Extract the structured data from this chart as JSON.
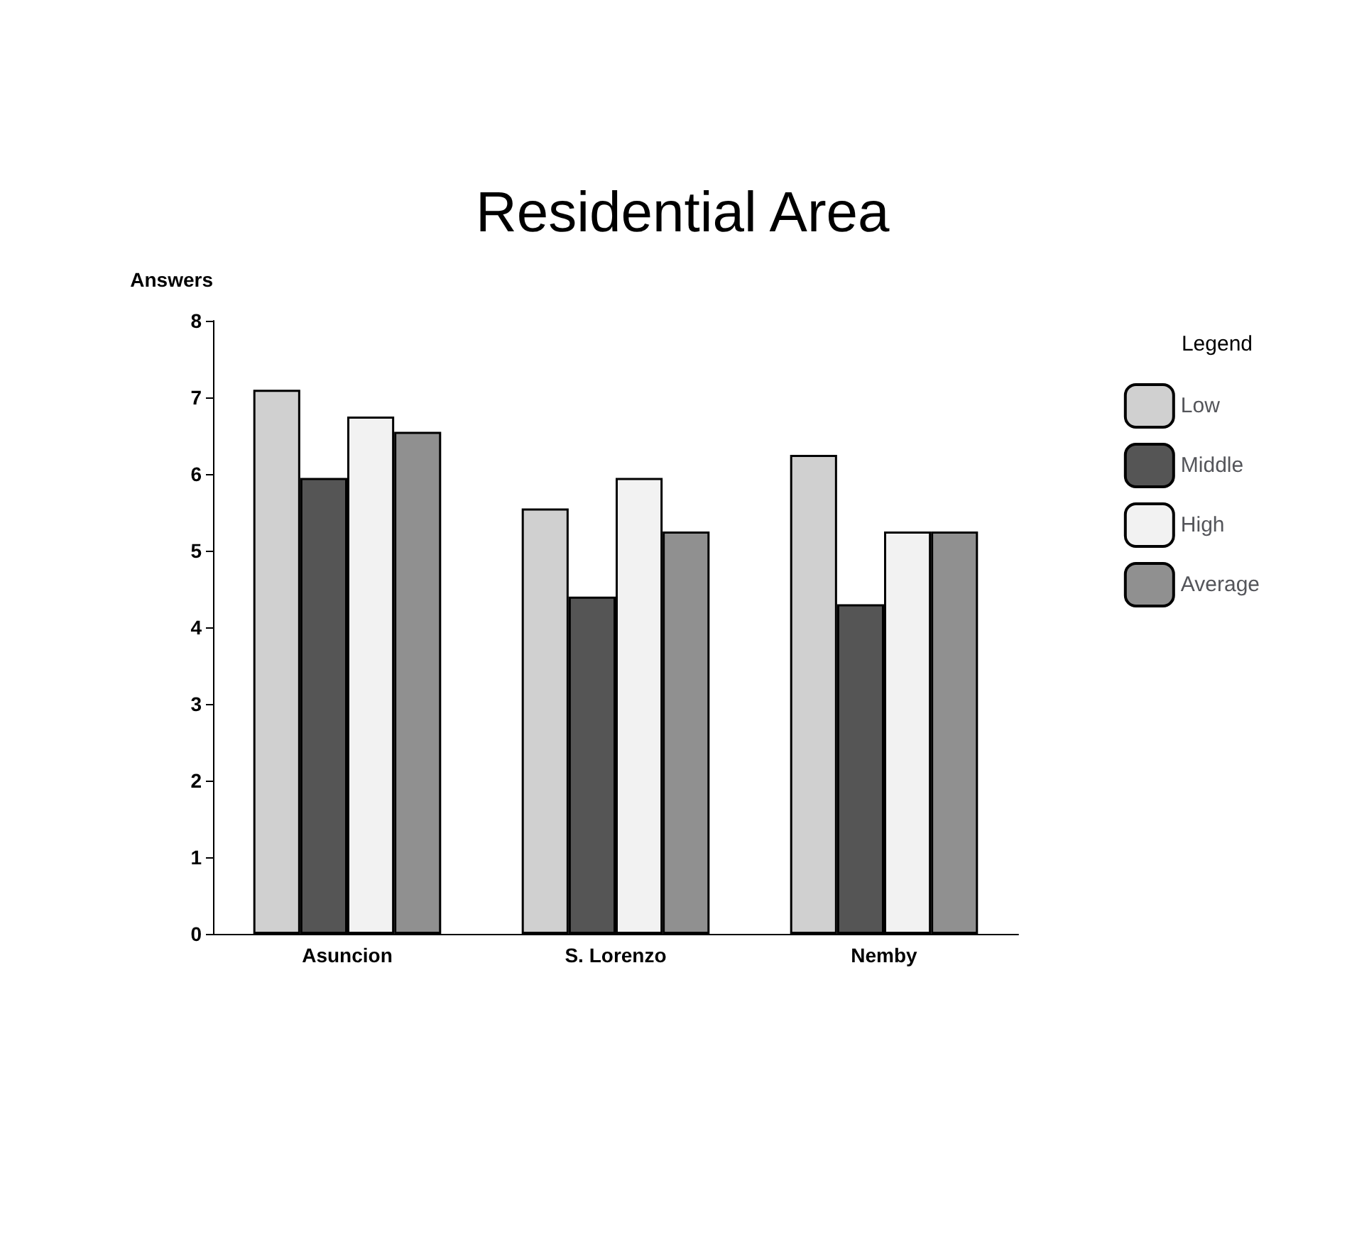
{
  "chart_data": {
    "type": "bar",
    "title": "Residential Area",
    "ylabel": "Answers",
    "legend_title": "Legend",
    "categories": [
      "Asuncion",
      "S. Lorenzo",
      "Nemby"
    ],
    "series": [
      {
        "name": "Low",
        "color": "#d0d0d0",
        "values": [
          7.1,
          5.55,
          6.25
        ]
      },
      {
        "name": "Middle",
        "color": "#555555",
        "values": [
          5.95,
          4.4,
          4.3
        ]
      },
      {
        "name": "High",
        "color": "#f2f2f2",
        "values": [
          6.75,
          5.95,
          5.25
        ]
      },
      {
        "name": "Average",
        "color": "#909090",
        "values": [
          6.55,
          5.25,
          5.25
        ]
      }
    ],
    "ylim": [
      0,
      8
    ],
    "yticks": [
      0,
      1,
      2,
      3,
      4,
      5,
      6,
      7,
      8
    ],
    "grid": false,
    "legend": "right"
  }
}
